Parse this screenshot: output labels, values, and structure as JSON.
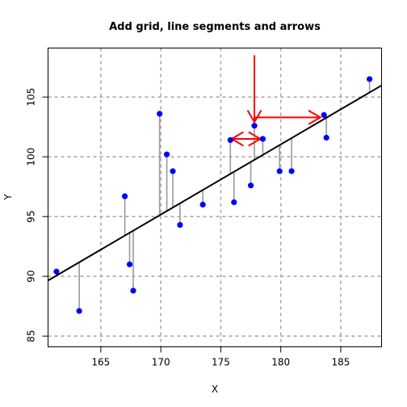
{
  "chart_data": {
    "type": "scatter",
    "title": "Add grid, line segments and arrows",
    "xlabel": "X",
    "ylabel": "Y",
    "xlim": [
      160.6,
      188.4
    ],
    "ylim": [
      84.1,
      109.1
    ],
    "xticks": [
      165,
      170,
      175,
      180,
      185
    ],
    "yticks": [
      85,
      90,
      95,
      100,
      105
    ],
    "grid": true,
    "points": [
      {
        "x": 161.3,
        "y": 90.4
      },
      {
        "x": 163.2,
        "y": 87.1
      },
      {
        "x": 167.0,
        "y": 96.7
      },
      {
        "x": 167.4,
        "y": 91.0
      },
      {
        "x": 167.7,
        "y": 88.8
      },
      {
        "x": 169.9,
        "y": 103.6
      },
      {
        "x": 170.5,
        "y": 100.2
      },
      {
        "x": 171.0,
        "y": 98.8
      },
      {
        "x": 171.6,
        "y": 94.3
      },
      {
        "x": 173.5,
        "y": 96.0
      },
      {
        "x": 175.8,
        "y": 101.4
      },
      {
        "x": 176.1,
        "y": 96.2
      },
      {
        "x": 177.5,
        "y": 97.6
      },
      {
        "x": 177.8,
        "y": 102.6
      },
      {
        "x": 178.5,
        "y": 101.5
      },
      {
        "x": 179.9,
        "y": 98.8
      },
      {
        "x": 180.9,
        "y": 98.8
      },
      {
        "x": 183.6,
        "y": 103.5
      },
      {
        "x": 183.8,
        "y": 101.6
      },
      {
        "x": 187.4,
        "y": 106.5
      }
    ],
    "regression_line": {
      "x": [
        160.6,
        188.4
      ],
      "y": [
        89.65,
        105.97
      ]
    },
    "arrows": [
      {
        "from": [
          177.8,
          108.5
        ],
        "to": [
          177.8,
          102.9
        ]
      },
      {
        "from": [
          177.8,
          103.3
        ],
        "to": [
          183.3,
          103.3
        ]
      }
    ],
    "double_arrow": {
      "from": [
        175.9,
        101.5
      ],
      "to": [
        178.3,
        101.5
      ]
    },
    "colors": {
      "points": "#0000ff",
      "segments": "#999999",
      "line": "#000000",
      "arrows": "#ff0000",
      "grid": "#aaaaaa"
    }
  }
}
